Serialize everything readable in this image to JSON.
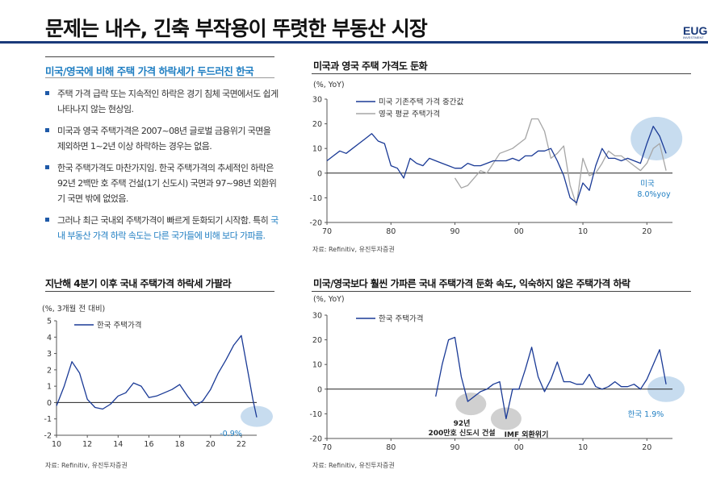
{
  "header": {
    "title": "문제는 내수, 긴축 부작용이 뚜렷한 부동산 시장",
    "logo_text": "EUG",
    "logo_sub": "INVESTMENT"
  },
  "left_panel": {
    "subheading": "미국/영국에 비해 주택 가격 하락세가 두드러진 한국",
    "bullets": [
      {
        "text": "주택 가격 급락 또는 지속적인 하락은 경기 침체 국면에서도 쉽게 나타나지 않는 현상임.",
        "highlight": ""
      },
      {
        "text": "미국과 영국 주택가격은 2007~08년 글로벌 금융위기 국면을 제외하면 1~2년 이상 하락하는 경우는 없음.",
        "highlight": ""
      },
      {
        "text": "한국 주택가격도 마찬가지임. 한국 주택가격의 추세적인 하락은 92년 2백만 호 주택 건설(1기 신도시) 국면과 97~98년 외환위기 국면 밖에 없었음.",
        "highlight": ""
      },
      {
        "text": "그러나 최근 국내외 주택가격이 빠르게 둔화되기 시작함. 특히 ",
        "highlight": "국내 부동산 가격 하락 속도는 다른 국가들에 비해 보다 가파름."
      }
    ]
  },
  "colors": {
    "navy": "#1a3a96",
    "gray": "#a6a6a6",
    "circle": "#c7dcef",
    "circle_gray": "#d0d0d0",
    "accent": "#1f7ec2"
  },
  "charts": {
    "top_right": {
      "heading": "미국과 영국 주택 가격도 둔화",
      "unit": "(%, YoY)",
      "source": "자료: Refinitiv, 유진투자증권",
      "annotation_line1": "미국",
      "annotation_line2": "8.0%yoy"
    },
    "bottom_left": {
      "heading": "지난해 4분기 이후 국내 주택가격 하락세 가팔라",
      "unit": "(%, 3개월 전 대비)",
      "source": "자료: Refinitiv, 유진투자증권",
      "annotation": "-0.9%"
    },
    "bottom_right": {
      "heading": "미국/영국보다 훨씬 가파른 국내 주택가격 둔화 속도, 익숙하지 않은 주택가격 하락",
      "unit": "(%, YoY)",
      "source": "자료: Refinitiv, 유진투자증권",
      "annotation_main": "한국 1.9%",
      "annotation_92_line1": "92년",
      "annotation_92_line2": "200만호 신도시 건설",
      "annotation_imf": "IMF 외환위기"
    }
  },
  "chart_data": [
    {
      "type": "line",
      "title": "미국과 영국 주택 가격도 둔화",
      "ylabel": "(%, YoY)",
      "xlim": [
        1970,
        2024
      ],
      "ylim": [
        -20,
        30
      ],
      "yticks": [
        "30",
        "20",
        "10",
        "0",
        "-10",
        "-20"
      ],
      "xticks": [
        "70",
        "80",
        "90",
        "00",
        "10",
        "20"
      ],
      "series": [
        {
          "name": "미국 기존주택 가격 중간값",
          "x": [
            1970,
            1971,
            1972,
            1973,
            1974,
            1975,
            1976,
            1977,
            1978,
            1979,
            1980,
            1981,
            1982,
            1983,
            1984,
            1985,
            1986,
            1987,
            1988,
            1989,
            1990,
            1991,
            1992,
            1993,
            1994,
            1995,
            1996,
            1997,
            1998,
            1999,
            2000,
            2001,
            2002,
            2003,
            2004,
            2005,
            2006,
            2007,
            2008,
            2009,
            2010,
            2011,
            2012,
            2013,
            2014,
            2015,
            2016,
            2017,
            2018,
            2019,
            2020,
            2021,
            2022,
            2023
          ],
          "y": [
            5,
            7,
            9,
            8,
            10,
            12,
            14,
            16,
            13,
            12,
            3,
            2,
            -2,
            6,
            4,
            3,
            6,
            5,
            4,
            3,
            2,
            2,
            4,
            3,
            3,
            4,
            5,
            5,
            5,
            6,
            5,
            7,
            7,
            9,
            9,
            10,
            5,
            -1,
            -10,
            -12,
            -4,
            -7,
            3,
            10,
            6,
            6,
            5,
            6,
            5,
            4,
            12,
            19,
            15,
            8
          ]
        },
        {
          "name": "영국 평균 주택가격",
          "x": [
            1990,
            1991,
            1992,
            1993,
            1994,
            1995,
            1996,
            1997,
            1998,
            1999,
            2000,
            2001,
            2002,
            2003,
            2004,
            2005,
            2006,
            2007,
            2008,
            2009,
            2010,
            2011,
            2012,
            2013,
            2014,
            2015,
            2016,
            2017,
            2018,
            2019,
            2020,
            2021,
            2022,
            2023
          ],
          "y": [
            -2,
            -6,
            -5,
            -2,
            1,
            0,
            4,
            8,
            9,
            10,
            12,
            14,
            22,
            22,
            17,
            6,
            8,
            11,
            -5,
            -13,
            6,
            -1,
            0,
            4,
            9,
            7,
            7,
            5,
            3,
            1,
            4,
            10,
            12,
            1
          ]
        }
      ]
    },
    {
      "type": "line",
      "title": "지난해 4분기 이후 국내 주택가격 하락세 가팔라",
      "ylabel": "(%, 3개월 전 대비)",
      "xlim": [
        2010,
        2023
      ],
      "ylim": [
        -2,
        5
      ],
      "yticks": [
        "5",
        "4",
        "3",
        "2",
        "1",
        "0",
        "-1",
        "-2"
      ],
      "xticks": [
        "10",
        "12",
        "14",
        "16",
        "18",
        "20",
        "22"
      ],
      "series": [
        {
          "name": "한국 주택가격",
          "x": [
            2010,
            2010.5,
            2011,
            2011.5,
            2012,
            2012.5,
            2013,
            2013.5,
            2014,
            2014.5,
            2015,
            2015.5,
            2016,
            2016.5,
            2017,
            2017.5,
            2018,
            2018.5,
            2019,
            2019.5,
            2020,
            2020.5,
            2021,
            2021.5,
            2022,
            2022.5,
            2022.75,
            2023
          ],
          "y": [
            -0.2,
            1.0,
            2.5,
            1.8,
            0.2,
            -0.3,
            -0.4,
            -0.1,
            0.4,
            0.6,
            1.2,
            1.0,
            0.3,
            0.4,
            0.6,
            0.8,
            1.1,
            0.4,
            -0.2,
            0.1,
            0.8,
            1.8,
            2.6,
            3.5,
            4.1,
            1.5,
            0.2,
            -0.9
          ]
        }
      ]
    },
    {
      "type": "line",
      "title": "미국/영국보다 훨씬 가파른 국내 주택가격 둔화 속도, 익숙하지 않은 주택가격 하락",
      "ylabel": "(%, YoY)",
      "xlim": [
        1970,
        2024
      ],
      "ylim": [
        -20,
        30
      ],
      "yticks": [
        "30",
        "20",
        "10",
        "0",
        "-10",
        "-20"
      ],
      "xticks": [
        "70",
        "80",
        "90",
        "00",
        "10",
        "20"
      ],
      "series": [
        {
          "name": "한국 주택가격",
          "x": [
            1987,
            1988,
            1989,
            1990,
            1991,
            1992,
            1993,
            1994,
            1995,
            1996,
            1997,
            1998,
            1999,
            2000,
            2001,
            2002,
            2003,
            2004,
            2005,
            2006,
            2007,
            2008,
            2009,
            2010,
            2011,
            2012,
            2013,
            2014,
            2015,
            2016,
            2017,
            2018,
            2019,
            2020,
            2021,
            2022,
            2023
          ],
          "y": [
            -3,
            10,
            20,
            21,
            5,
            -5,
            -3,
            -1,
            0,
            2,
            3,
            -12,
            0,
            0,
            8,
            17,
            5,
            -1,
            4,
            11,
            3,
            3,
            2,
            2,
            6,
            1,
            0,
            1,
            3,
            1,
            1,
            2,
            0,
            4,
            10,
            16,
            2
          ]
        }
      ]
    }
  ]
}
